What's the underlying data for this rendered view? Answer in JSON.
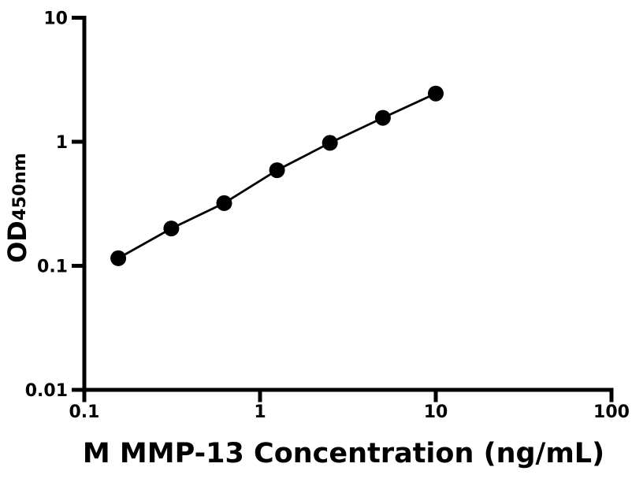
{
  "chart_data": {
    "type": "line",
    "title": "",
    "xlabel": "M MMP-13 Concentration (ng/mL)",
    "ylabel_main": "OD",
    "ylabel_sub": "450nm",
    "x_scale": "log",
    "y_scale": "log",
    "xlim": [
      0.1,
      100
    ],
    "ylim": [
      0.01,
      10
    ],
    "x_ticks": [
      {
        "value": 0.1,
        "label": "0.1"
      },
      {
        "value": 1,
        "label": "1"
      },
      {
        "value": 10,
        "label": "10"
      },
      {
        "value": 100,
        "label": "100"
      }
    ],
    "y_ticks": [
      {
        "value": 0.01,
        "label": "0.01"
      },
      {
        "value": 0.1,
        "label": "0.1"
      },
      {
        "value": 1,
        "label": "1"
      },
      {
        "value": 10,
        "label": "10"
      }
    ],
    "grid": false,
    "legend": "none",
    "series": [
      {
        "marker": "filled-circle",
        "line_color": "#000000",
        "marker_color": "#000000",
        "x": [
          0.156,
          0.3125,
          0.625,
          1.25,
          2.5,
          5,
          10
        ],
        "y": [
          0.115,
          0.2,
          0.32,
          0.59,
          0.98,
          1.56,
          2.45
        ]
      }
    ],
    "background_color": "#ffffff",
    "axis_color": "#000000"
  }
}
